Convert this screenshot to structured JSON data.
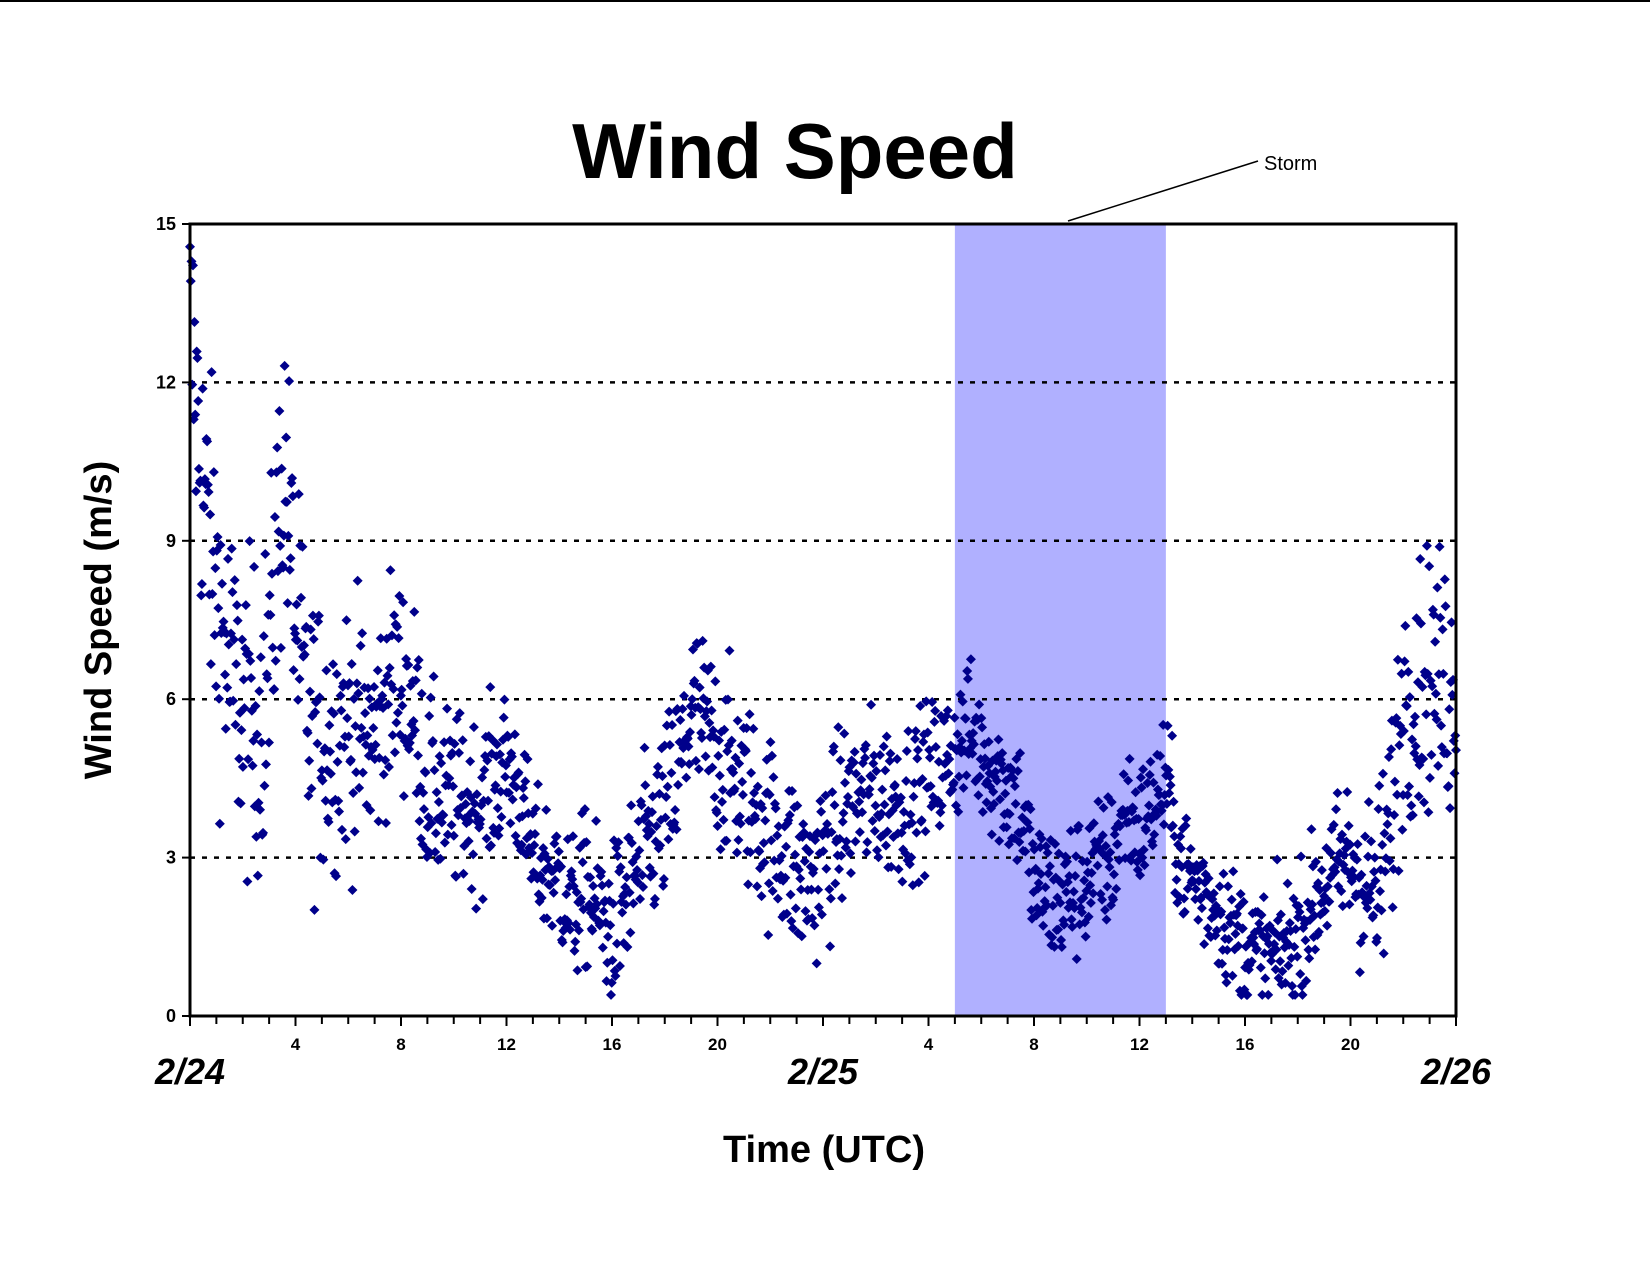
{
  "chart_data": {
    "type": "scatter",
    "title": "Wind Speed",
    "xlabel": "Time (UTC)",
    "ylabel": "Wind Speed (m/s)",
    "xlim": [
      0,
      48
    ],
    "ylim": [
      0,
      15
    ],
    "y_ticks": [
      0,
      3,
      6,
      9,
      12,
      15
    ],
    "y_tick_labels": [
      "0",
      "3",
      "6",
      "9",
      "12",
      "15"
    ],
    "x_tick_hours": [
      4,
      8,
      12,
      16,
      20,
      28,
      32,
      36,
      40,
      44
    ],
    "x_tick_labels": [
      "4",
      "8",
      "12",
      "16",
      "20",
      "4",
      "8",
      "12",
      "16",
      "20"
    ],
    "day_labels": [
      {
        "hour": 0,
        "text": "2/24"
      },
      {
        "hour": 24,
        "text": "2/25"
      },
      {
        "hour": 48,
        "text": "2/26"
      }
    ],
    "grid": "horizontal dotted at 3, 6, 9, 12",
    "marker": "diamond",
    "marker_color": "#00008B",
    "storm_band": {
      "x_start": 29,
      "x_end": 37,
      "color": "#B0B0FF",
      "label": "Storm"
    },
    "profile": [
      [
        0.0,
        13.0
      ],
      [
        0.5,
        10.0
      ],
      [
        1.0,
        8.0
      ],
      [
        1.5,
        6.5
      ],
      [
        2.0,
        5.8
      ],
      [
        2.5,
        5.5
      ],
      [
        3.0,
        6.5
      ],
      [
        3.3,
        9.0
      ],
      [
        3.6,
        10.5
      ],
      [
        4.0,
        7.5
      ],
      [
        4.5,
        5.5
      ],
      [
        5.0,
        5.2
      ],
      [
        6.0,
        5.5
      ],
      [
        7.0,
        5.2
      ],
      [
        7.5,
        6.2
      ],
      [
        8.0,
        6.4
      ],
      [
        8.5,
        5.8
      ],
      [
        9.0,
        4.3
      ],
      [
        10.0,
        4.0
      ],
      [
        11.0,
        4.0
      ],
      [
        12.0,
        4.8
      ],
      [
        12.5,
        4.2
      ],
      [
        13.0,
        3.0
      ],
      [
        14.0,
        2.6
      ],
      [
        14.5,
        2.0
      ],
      [
        15.0,
        2.4
      ],
      [
        16.0,
        1.6
      ],
      [
        17.0,
        2.8
      ],
      [
        18.0,
        3.8
      ],
      [
        18.5,
        4.5
      ],
      [
        19.0,
        5.8
      ],
      [
        20.0,
        5.0
      ],
      [
        21.0,
        4.3
      ],
      [
        22.0,
        3.5
      ],
      [
        23.0,
        2.8
      ],
      [
        23.5,
        2.5
      ],
      [
        24.0,
        3.0
      ],
      [
        25.0,
        4.0
      ],
      [
        26.0,
        4.2
      ],
      [
        27.0,
        4.0
      ],
      [
        28.0,
        4.5
      ],
      [
        29.0,
        5.0
      ],
      [
        29.5,
        5.4
      ],
      [
        30.0,
        5.0
      ],
      [
        31.0,
        4.3
      ],
      [
        31.5,
        4.0
      ],
      [
        32.0,
        2.5
      ],
      [
        33.0,
        2.2
      ],
      [
        34.0,
        2.6
      ],
      [
        35.0,
        3.0
      ],
      [
        35.5,
        4.0
      ],
      [
        36.0,
        3.5
      ],
      [
        37.0,
        4.5
      ],
      [
        37.5,
        3.0
      ],
      [
        38.0,
        2.6
      ],
      [
        39.0,
        2.0
      ],
      [
        40.0,
        1.3
      ],
      [
        41.0,
        1.1
      ],
      [
        42.0,
        1.5
      ],
      [
        43.0,
        2.5
      ],
      [
        44.0,
        3.0
      ],
      [
        45.0,
        2.2
      ],
      [
        45.5,
        3.5
      ],
      [
        46.0,
        6.0
      ],
      [
        47.0,
        6.5
      ],
      [
        48.0,
        6.0
      ]
    ],
    "spread": [
      [
        0.0,
        2.2
      ],
      [
        4.0,
        2.0
      ],
      [
        8.0,
        1.4
      ],
      [
        13.0,
        0.9
      ],
      [
        19.0,
        1.3
      ],
      [
        24.0,
        1.2
      ],
      [
        30.0,
        0.9
      ],
      [
        33.0,
        1.0
      ],
      [
        38.0,
        0.8
      ],
      [
        43.0,
        0.9
      ],
      [
        46.0,
        1.6
      ],
      [
        48.0,
        1.8
      ]
    ]
  },
  "page": {
    "title": "Wind Speed",
    "ylabel": "Wind Speed (m/s)",
    "xlabel": "Time (UTC)",
    "annotation": "Storm"
  }
}
